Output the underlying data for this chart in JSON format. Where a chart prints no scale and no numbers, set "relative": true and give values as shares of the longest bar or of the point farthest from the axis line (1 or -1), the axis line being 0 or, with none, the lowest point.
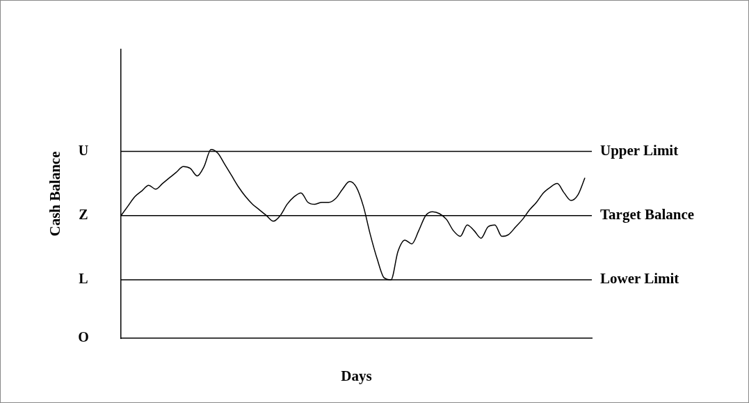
{
  "chart_data": {
    "type": "line",
    "xlabel": "Days",
    "ylabel": "Cash Balance",
    "relative": true,
    "categories": [
      null,
      null,
      null,
      null,
      null,
      null,
      null,
      null,
      null,
      null,
      null,
      null,
      null,
      null,
      null,
      null,
      null,
      null,
      null,
      null,
      null,
      null,
      null,
      null,
      null,
      null,
      null,
      null,
      null,
      null,
      null,
      null,
      null,
      null,
      null,
      null,
      null,
      null,
      null,
      null,
      null,
      null,
      null,
      null,
      null,
      null,
      null,
      null,
      null,
      null,
      null,
      null,
      null,
      null,
      null,
      null,
      null,
      null,
      null,
      null,
      null,
      null,
      null,
      null,
      null,
      null,
      null,
      null,
      null
    ],
    "series": [
      {
        "color": "#000000",
        "values": [
          0.65,
          0.7,
          0.75,
          0.78,
          0.81,
          0.79,
          0.82,
          0.85,
          0.88,
          0.91,
          0.9,
          0.86,
          0.91,
          1,
          0.98,
          0.92,
          0.86,
          0.8,
          0.75,
          0.71,
          0.68,
          0.65,
          0.62,
          0.65,
          0.71,
          0.75,
          0.77,
          0.72,
          0.71,
          0.72,
          0.72,
          0.74,
          0.79,
          0.83,
          0.8,
          0.7,
          0.55,
          0.42,
          0.32,
          0.31,
          0.46,
          0.52,
          0.5,
          0.57,
          0.65,
          0.67,
          0.66,
          0.63,
          0.57,
          0.54,
          0.6,
          0.57,
          0.53,
          0.59,
          0.6,
          0.54,
          0.55,
          0.59,
          0.63,
          0.68,
          0.72,
          0.77,
          0.8,
          0.82,
          0.77,
          0.73,
          0.76,
          0.85,
          null
        ]
      }
    ],
    "ref_lines": [
      {
        "axis": "y",
        "value": 0.99,
        "label": "Upper Limit",
        "color": "#000000"
      },
      {
        "axis": "y",
        "value": 0.65,
        "label": "Target Balance",
        "color": "#000000"
      },
      {
        "axis": "y",
        "value": 0.31,
        "label": "Lower Limit",
        "color": "#000000"
      }
    ],
    "annotations": [
      "U",
      "Z",
      "L",
      "O"
    ],
    "grid": false,
    "legend": false,
    "marker": "none",
    "line_style": "solid"
  }
}
